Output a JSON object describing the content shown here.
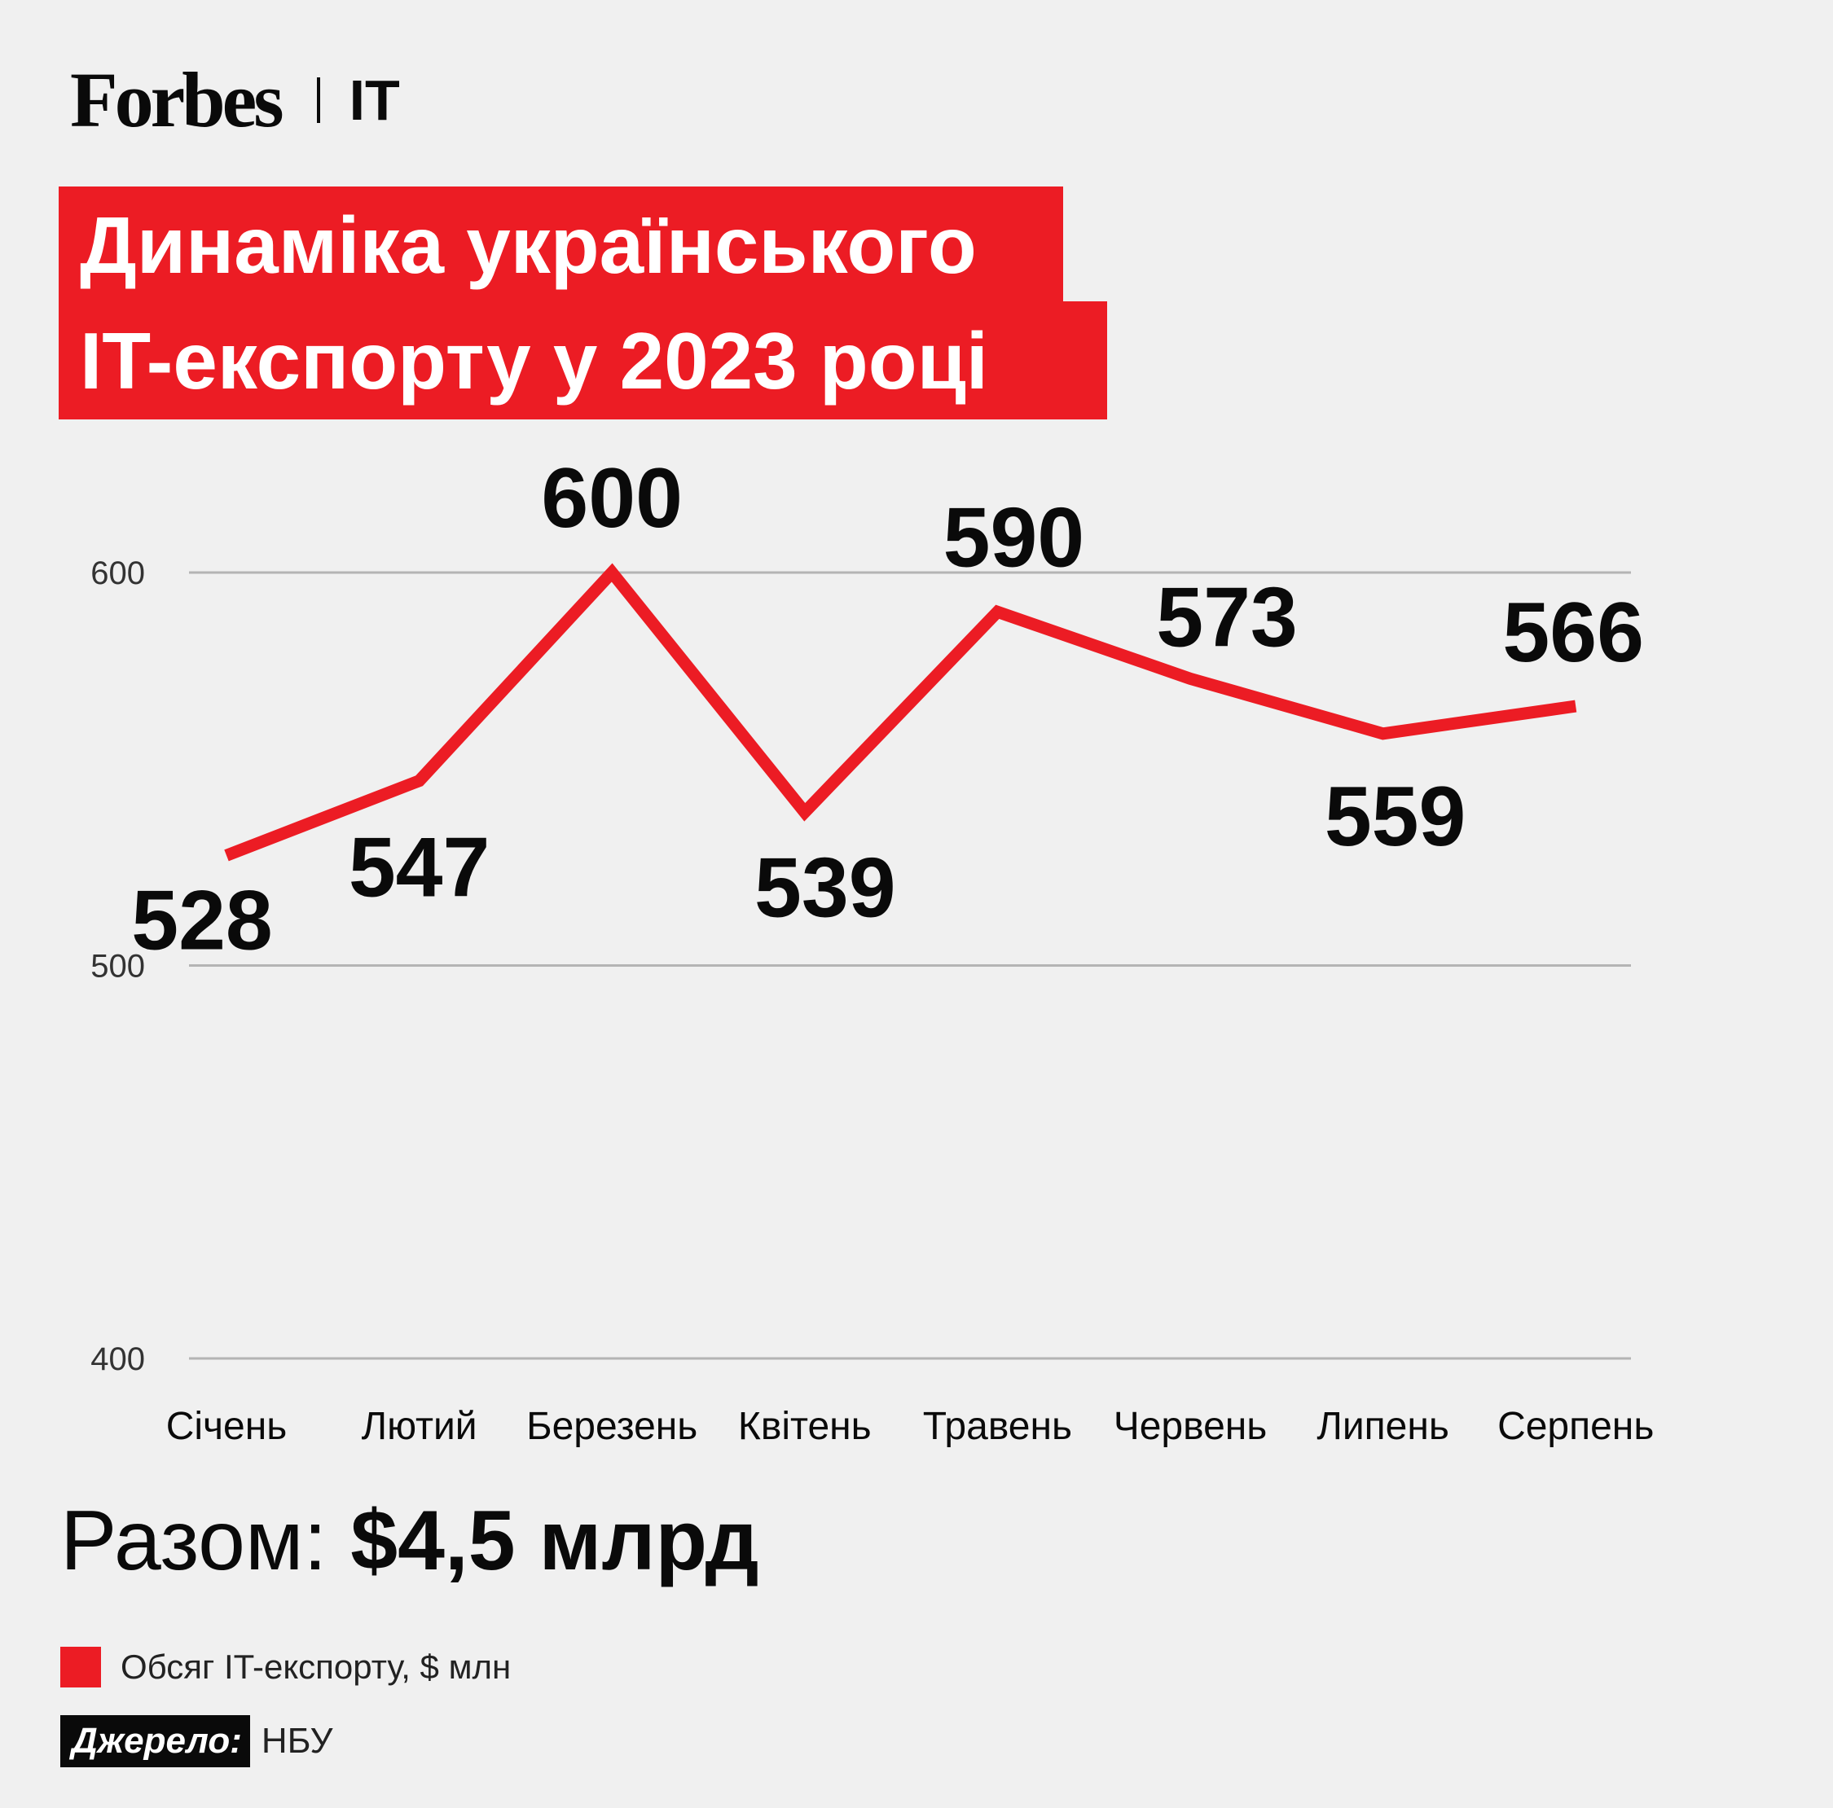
{
  "brand": {
    "logo": "Forbes",
    "section": "IT"
  },
  "title": {
    "line1": "Динаміка українського",
    "line2": "IT-експорту у 2023 році"
  },
  "colors": {
    "accent": "#ec1c24",
    "text": "#0a0a0a",
    "grid": "#b4b4b4",
    "background": "#f0f0f0"
  },
  "chart_data": {
    "type": "line",
    "categories": [
      "Січень",
      "Лютий",
      "Березень",
      "Квітень",
      "Травень",
      "Червень",
      "Липень",
      "Серпень"
    ],
    "series": [
      {
        "name": "Обсяг IT-експорту, $ млн",
        "values": [
          528,
          547,
          600,
          539,
          590,
          573,
          559,
          566
        ]
      }
    ],
    "ylim": [
      400,
      600
    ],
    "yticks": [
      400,
      500,
      600
    ],
    "grid": true,
    "data_labels": true,
    "legend_position": "bottom-left"
  },
  "total": {
    "label": "Разом: ",
    "value": "$4,5 млрд"
  },
  "legend": {
    "label": "Обсяг IT-експорту, $ млн"
  },
  "source": {
    "label": "Джерело:",
    "value": "НБУ"
  }
}
